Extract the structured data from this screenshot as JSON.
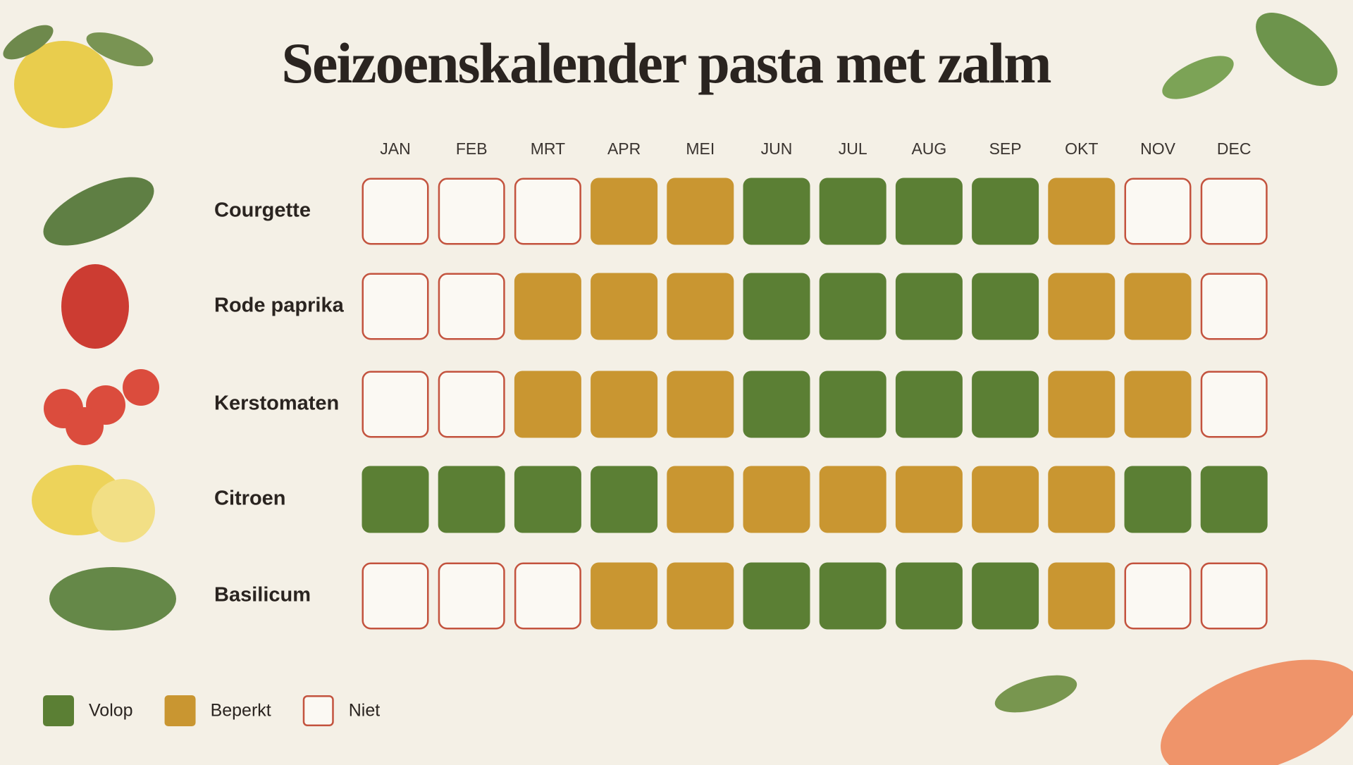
{
  "title": "Seizoenskalender pasta met zalm",
  "months": [
    "JAN",
    "FEB",
    "MRT",
    "APR",
    "MEI",
    "JUN",
    "JUL",
    "AUG",
    "SEP",
    "OKT",
    "NOV",
    "DEC"
  ],
  "legend": [
    {
      "label": "Volop",
      "color": "#5b7f34",
      "filled": true
    },
    {
      "label": "Beperkt",
      "color": "#c99631",
      "filled": true
    },
    {
      "label": "Niet",
      "color": "#c3533e",
      "filled": false
    }
  ],
  "rows": [
    {
      "name": "Courgette",
      "status": [
        2,
        2,
        2,
        1,
        1,
        0,
        0,
        0,
        0,
        1,
        2,
        2
      ]
    },
    {
      "name": "Rode paprika",
      "status": [
        2,
        2,
        1,
        1,
        1,
        0,
        0,
        0,
        0,
        1,
        1,
        2
      ]
    },
    {
      "name": "Kerstomaten",
      "status": [
        2,
        2,
        1,
        1,
        1,
        0,
        0,
        0,
        0,
        1,
        1,
        2
      ]
    },
    {
      "name": "Citroen",
      "status": [
        0,
        0,
        0,
        0,
        1,
        1,
        1,
        1,
        1,
        1,
        0,
        0
      ]
    },
    {
      "name": "Basilicum",
      "status": [
        2,
        2,
        2,
        1,
        1,
        0,
        0,
        0,
        0,
        1,
        2,
        2
      ]
    }
  ]
}
